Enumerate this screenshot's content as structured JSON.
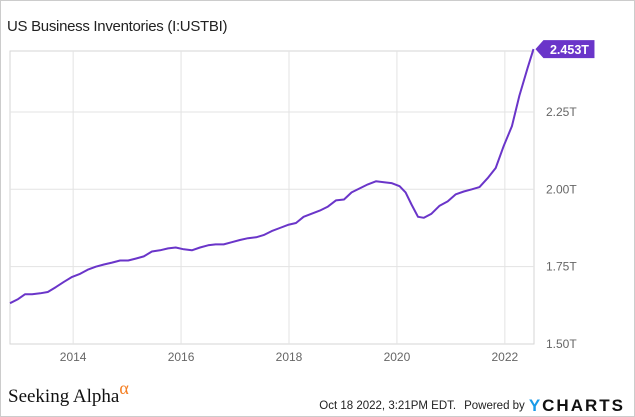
{
  "chart_data": {
    "type": "line",
    "title": "US Business Inventories (I:USTBI)",
    "xlabel": "",
    "ylabel": "",
    "xlim": [
      2012.83,
      2022.54
    ],
    "ylim": [
      1.5,
      2.447
    ],
    "grid": true,
    "x_ticks": [
      2014,
      2016,
      2018,
      2020,
      2022
    ],
    "x_tick_labels": [
      "2014",
      "2016",
      "2018",
      "2020",
      "2022"
    ],
    "y_ticks": [
      1.5,
      1.75,
      2.0,
      2.25
    ],
    "y_tick_labels": [
      "1.50T",
      "1.75T",
      "2.00T",
      "2.25T"
    ],
    "series": [
      {
        "name": "US Business Inventories",
        "color": "#6a35c9",
        "unit": "T",
        "x": [
          2012.83,
          2012.98,
          2013.11,
          2013.24,
          2013.39,
          2013.53,
          2013.68,
          2013.83,
          2013.98,
          2014.13,
          2014.27,
          2014.42,
          2014.57,
          2014.72,
          2014.87,
          2015.02,
          2015.16,
          2015.31,
          2015.46,
          2015.61,
          2015.76,
          2015.9,
          2016.05,
          2016.2,
          2016.35,
          2016.5,
          2016.64,
          2016.79,
          2016.94,
          2017.09,
          2017.24,
          2017.39,
          2017.53,
          2017.68,
          2017.83,
          2017.98,
          2018.13,
          2018.27,
          2018.42,
          2018.57,
          2018.72,
          2018.87,
          2019.02,
          2019.16,
          2019.31,
          2019.46,
          2019.61,
          2019.76,
          2019.9,
          2020.05,
          2020.16,
          2020.27,
          2020.39,
          2020.5,
          2020.64,
          2020.79,
          2020.94,
          2021.09,
          2021.24,
          2021.39,
          2021.53,
          2021.68,
          2021.83,
          2021.98,
          2022.13,
          2022.27,
          2022.42,
          2022.53
        ],
        "values": [
          1.632,
          1.645,
          1.661,
          1.661,
          1.664,
          1.668,
          1.684,
          1.701,
          1.717,
          1.727,
          1.74,
          1.75,
          1.757,
          1.763,
          1.77,
          1.77,
          1.776,
          1.783,
          1.799,
          1.803,
          1.809,
          1.812,
          1.806,
          1.803,
          1.812,
          1.819,
          1.822,
          1.822,
          1.829,
          1.836,
          1.842,
          1.845,
          1.852,
          1.865,
          1.875,
          1.885,
          1.891,
          1.911,
          1.921,
          1.931,
          1.944,
          1.964,
          1.967,
          1.99,
          2.003,
          2.016,
          2.026,
          2.023,
          2.02,
          2.01,
          1.99,
          1.951,
          1.911,
          1.908,
          1.921,
          1.947,
          1.961,
          1.984,
          1.993,
          2.0,
          2.007,
          2.036,
          2.069,
          2.141,
          2.204,
          2.303,
          2.391,
          2.453
        ]
      }
    ],
    "last_value_label": "2.453T"
  },
  "footer": {
    "brand": "Seeking Alpha",
    "brand_symbol": "α",
    "timestamp": "Oct 18 2022, 3:21PM EDT.",
    "powered_by": "Powered by",
    "ycharts_y": "Y",
    "ycharts_rest": "CHARTS"
  }
}
